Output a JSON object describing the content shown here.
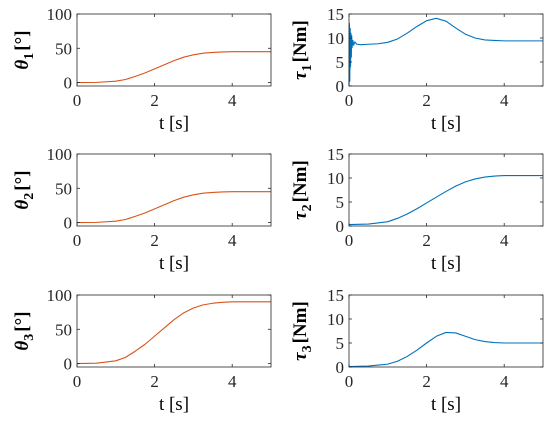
{
  "colors": {
    "theta": "#D95319",
    "tau": "#0072BD",
    "axis": "#262626"
  },
  "chart_data": [
    {
      "type": "line",
      "ylabel": {
        "symbol": "θ",
        "sub": "1",
        "unit": "[°]"
      },
      "xlabel": "t [s]",
      "xlim": [
        0,
        5
      ],
      "ylim": [
        -5,
        100
      ],
      "xticks": [
        "0",
        "2",
        "4"
      ],
      "yticks": [
        "0",
        "50",
        "100"
      ],
      "series": [
        {
          "color": "#D95319",
          "x": [
            0,
            0.5,
            1.0,
            1.25,
            1.5,
            1.75,
            2.0,
            2.25,
            2.5,
            2.75,
            3.0,
            3.25,
            3.5,
            3.75,
            4.0,
            4.5,
            5.0
          ],
          "y": [
            0,
            0.3,
            2.0,
            4.5,
            9.0,
            14.0,
            20.0,
            26.0,
            32.0,
            37.0,
            40.5,
            42.8,
            44.0,
            44.7,
            45.0,
            45.0,
            45.0
          ]
        }
      ]
    },
    {
      "type": "line",
      "ylabel": {
        "symbol": "τ",
        "sub": "1",
        "unit": "[Nm]"
      },
      "xlabel": "t [s]",
      "xlim": [
        0,
        5
      ],
      "ylim": [
        0,
        15
      ],
      "xticks": [
        "0",
        "2",
        "4"
      ],
      "yticks": [
        "0",
        "5",
        "10",
        "15"
      ],
      "series": [
        {
          "color": "#0072BD",
          "x": [
            0,
            0.01,
            0.02,
            0.03,
            0.04,
            0.05,
            0.06,
            0.07,
            0.08,
            0.1,
            0.12,
            0.15,
            0.2,
            0.3,
            0.5,
            0.75,
            1.0,
            1.25,
            1.5,
            1.75,
            2.0,
            2.25,
            2.5,
            2.75,
            3.0,
            3.25,
            3.5,
            3.75,
            4.0,
            4.5,
            5.0
          ],
          "y": [
            0,
            13,
            1,
            12,
            4,
            11,
            6,
            10.5,
            8,
            9.5,
            8.5,
            9.2,
            8.7,
            8.6,
            8.7,
            8.8,
            9.1,
            9.8,
            11.0,
            12.4,
            13.6,
            14.1,
            13.5,
            12.1,
            10.8,
            10.0,
            9.6,
            9.5,
            9.4,
            9.4,
            9.4
          ]
        }
      ]
    },
    {
      "type": "line",
      "ylabel": {
        "symbol": "θ",
        "sub": "2",
        "unit": "[°]"
      },
      "xlabel": "t [s]",
      "xlim": [
        0,
        5
      ],
      "ylim": [
        -5,
        100
      ],
      "xticks": [
        "0",
        "2",
        "4"
      ],
      "yticks": [
        "0",
        "50",
        "100"
      ],
      "series": [
        {
          "color": "#D95319",
          "x": [
            0,
            0.5,
            1.0,
            1.25,
            1.5,
            1.75,
            2.0,
            2.25,
            2.5,
            2.75,
            3.0,
            3.25,
            3.5,
            3.75,
            4.0,
            4.5,
            5.0
          ],
          "y": [
            0,
            0.3,
            2.0,
            4.5,
            9.0,
            14.0,
            20.0,
            26.0,
            32.0,
            37.0,
            40.5,
            42.8,
            44.0,
            44.7,
            45.0,
            45.0,
            45.0
          ]
        }
      ]
    },
    {
      "type": "line",
      "ylabel": {
        "symbol": "τ",
        "sub": "2",
        "unit": "[Nm]"
      },
      "xlabel": "t [s]",
      "xlim": [
        0,
        5
      ],
      "ylim": [
        0,
        15
      ],
      "xticks": [
        "0",
        "2",
        "4"
      ],
      "yticks": [
        "0",
        "5",
        "10",
        "15"
      ],
      "series": [
        {
          "color": "#0072BD",
          "x": [
            0,
            0.5,
            1.0,
            1.25,
            1.5,
            1.75,
            2.0,
            2.25,
            2.5,
            2.75,
            3.0,
            3.25,
            3.5,
            3.75,
            4.0,
            4.5,
            5.0
          ],
          "y": [
            0.3,
            0.4,
            0.9,
            1.6,
            2.5,
            3.6,
            4.8,
            6.0,
            7.2,
            8.3,
            9.2,
            9.8,
            10.2,
            10.4,
            10.5,
            10.5,
            10.5
          ]
        }
      ]
    },
    {
      "type": "line",
      "ylabel": {
        "symbol": "θ",
        "sub": "3",
        "unit": "[°]"
      },
      "xlabel": "t [s]",
      "xlim": [
        0,
        5
      ],
      "ylim": [
        -5,
        100
      ],
      "xticks": [
        "0",
        "2",
        "4"
      ],
      "yticks": [
        "0",
        "50",
        "100"
      ],
      "series": [
        {
          "color": "#D95319",
          "x": [
            0,
            0.5,
            1.0,
            1.25,
            1.5,
            1.75,
            2.0,
            2.25,
            2.5,
            2.75,
            3.0,
            3.25,
            3.5,
            3.75,
            4.0,
            4.5,
            5.0
          ],
          "y": [
            0,
            0.6,
            4.0,
            9.0,
            18.0,
            28.0,
            40.0,
            52.0,
            64.0,
            74.0,
            81.0,
            85.6,
            88.0,
            89.4,
            90.0,
            90.0,
            90.0
          ]
        }
      ]
    },
    {
      "type": "line",
      "ylabel": {
        "symbol": "τ",
        "sub": "3",
        "unit": "[Nm]"
      },
      "xlabel": "t [s]",
      "xlim": [
        0,
        5
      ],
      "ylim": [
        0,
        15
      ],
      "xticks": [
        "0",
        "2",
        "4"
      ],
      "yticks": [
        "0",
        "5",
        "10",
        "15"
      ],
      "series": [
        {
          "color": "#0072BD",
          "x": [
            0,
            0.5,
            1.0,
            1.25,
            1.5,
            1.75,
            2.0,
            2.25,
            2.5,
            2.75,
            3.0,
            3.25,
            3.5,
            3.75,
            4.0,
            4.5,
            5.0
          ],
          "y": [
            0.1,
            0.2,
            0.6,
            1.2,
            2.2,
            3.5,
            5.0,
            6.4,
            7.2,
            7.1,
            6.4,
            5.7,
            5.3,
            5.1,
            5.0,
            5.0,
            5.0
          ]
        }
      ]
    }
  ]
}
